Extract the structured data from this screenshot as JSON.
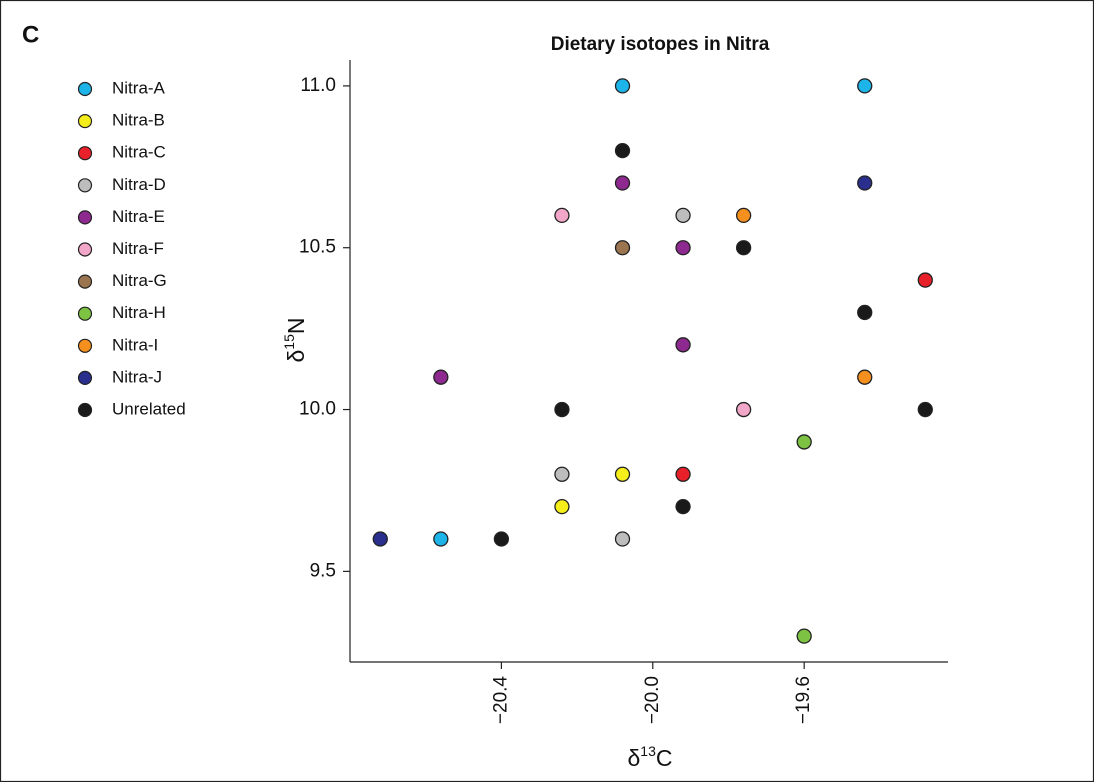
{
  "panel_label": "C",
  "chart_data": {
    "type": "scatter",
    "title": "Dietary isotopes in Nitra",
    "xlabel": {
      "prefix": "δ",
      "superscript": "13",
      "suffix": "C"
    },
    "ylabel": {
      "prefix": "δ",
      "superscript": "15",
      "suffix": "N"
    },
    "xlim": [
      -20.8,
      -19.22
    ],
    "ylim": [
      9.22,
      11.08
    ],
    "xticks": [
      {
        "value": -20.4,
        "label": "−20.4"
      },
      {
        "value": -20.0,
        "label": "−20.0"
      },
      {
        "value": -19.6,
        "label": "−19.6"
      }
    ],
    "yticks": [
      {
        "value": 9.5,
        "label": "9.5"
      },
      {
        "value": 10,
        "label": "10.0"
      },
      10.5,
      {
        "value": 11,
        "label": "11.0"
      }
    ],
    "legend": "top-left outside",
    "series": [
      {
        "name": "Nitra-A",
        "color": "#1db4ea",
        "x": [
          -20.08,
          -19.44,
          -20.56
        ],
        "y": [
          11.0,
          11.0,
          9.6
        ]
      },
      {
        "name": "Nitra-B",
        "color": "#f5ee1a",
        "x": [
          -20.08,
          -20.24
        ],
        "y": [
          9.8,
          9.7
        ]
      },
      {
        "name": "Nitra-C",
        "color": "#e8202a",
        "x": [
          -19.28,
          -19.92
        ],
        "y": [
          10.4,
          9.8
        ]
      },
      {
        "name": "Nitra-D",
        "color": "#bdbdbd",
        "x": [
          -19.92,
          -20.24,
          -20.08
        ],
        "y": [
          10.6,
          9.8,
          9.6
        ]
      },
      {
        "name": "Nitra-E",
        "color": "#8e2a8f",
        "x": [
          -20.08,
          -19.92,
          -19.92,
          -20.56
        ],
        "y": [
          10.7,
          10.5,
          10.2,
          10.1
        ]
      },
      {
        "name": "Nitra-F",
        "color": "#f2a6c8",
        "x": [
          -20.24,
          -19.76
        ],
        "y": [
          10.6,
          10.0
        ]
      },
      {
        "name": "Nitra-G",
        "color": "#9a7550",
        "x": [
          -20.08
        ],
        "y": [
          10.5
        ]
      },
      {
        "name": "Nitra-H",
        "color": "#7dc242",
        "x": [
          -19.6,
          -19.6
        ],
        "y": [
          9.9,
          9.3
        ]
      },
      {
        "name": "Nitra-I",
        "color": "#f5901e",
        "x": [
          -19.76,
          -19.44
        ],
        "y": [
          10.6,
          10.1
        ]
      },
      {
        "name": "Nitra-J",
        "color": "#2a2f8d",
        "x": [
          -19.44,
          -20.72
        ],
        "y": [
          10.7,
          9.6
        ]
      },
      {
        "name": "Unrelated",
        "color": "#1a1a1a",
        "x": [
          -20.08,
          -19.76,
          -19.44,
          -20.24,
          -19.28,
          -19.92,
          -20.4
        ],
        "y": [
          10.8,
          10.5,
          10.3,
          10.0,
          10.0,
          9.7,
          9.6
        ]
      }
    ]
  }
}
